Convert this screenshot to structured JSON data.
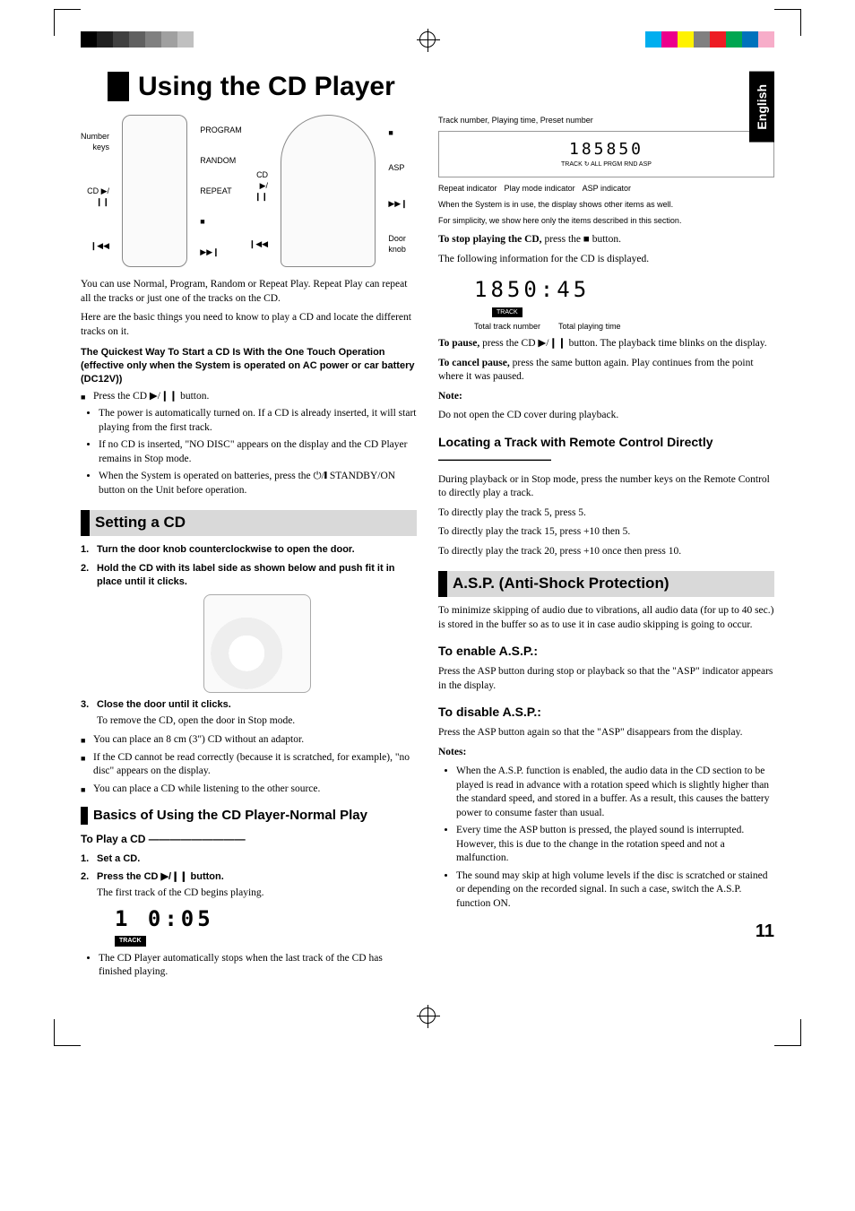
{
  "colorbar_left": [
    "#000000",
    "#202020",
    "#404040",
    "#606060",
    "#808080",
    "#a0a0a0",
    "#c0c0c0",
    "#ffffff"
  ],
  "colorbar_right": [
    "#00aeef",
    "#ec008c",
    "#fff200",
    "#808080",
    "#ed1c24",
    "#00a651",
    "#0072bc",
    "#f7adc9"
  ],
  "lang": "English",
  "title": "Using the CD Player",
  "callouts": {
    "number_keys": "Number keys",
    "cd_play": "CD ▶/❙❙",
    "prev": "❙◀◀",
    "program": "PROGRAM",
    "random": "RANDOM",
    "repeat": "REPEAT",
    "stop": "■",
    "next": "▶▶❙",
    "unit_cd": "CD ▶/❙❙",
    "unit_prev": "❙◀◀",
    "unit_stop": "■",
    "unit_asp": "ASP",
    "unit_next": "▶▶❙",
    "door_knob": "Door knob"
  },
  "display_caption": "Track number, Playing time, Preset number",
  "display_img": {
    "value": "185850",
    "sub": "TRACK   ↻ ALL PRGM RND   ASP",
    "repeat": "Repeat indicator",
    "playmode": "Play mode indicator",
    "asp": "ASP indicator"
  },
  "display_note1": "When the System is in use, the display shows other items as well.",
  "display_note2": "For simplicity, we show here only the items described in this section.",
  "intro1": "You can use Normal, Program, Random or Repeat Play. Repeat Play can repeat all the tracks or just one of the tracks on the CD.",
  "intro2": "Here are the basic things you need to know to play a CD and locate the different tracks on it.",
  "quickest": "The Quickest Way To Start a CD Is With the One Touch Operation (effective only when the System is operated on AC power or car battery (DC12V))",
  "press_cd": "Press the CD ▶/❙❙ button.",
  "quick_b1": "The power is automatically turned on. If a CD is already inserted, it will start playing from the first track.",
  "quick_b2": "If no CD is inserted, \"NO DISC\" appears on the display and the CD Player remains in Stop mode.",
  "quick_b3": "When the System is operated on batteries, press the ⏻/❙ STANDBY/ON button on the Unit before operation.",
  "setting_head": "Setting a CD",
  "step1": "Turn the door knob counterclockwise to open the door.",
  "step2": "Hold the CD with its label side as shown below and push fit it in place until it clicks.",
  "step3": "Close the door until it clicks.",
  "step3_body": "To remove the CD, open the door in Stop mode.",
  "after1": "You can place an 8 cm (3\") CD without an adaptor.",
  "after2": "If the CD cannot be read correctly (because it is scratched, for example), \"no disc\" appears on the display.",
  "after3": "You can place a CD while listening to the other source.",
  "basics_head": "Basics of Using the CD Player-Normal Play",
  "toplay_head": "To Play a CD  —————————",
  "bstep1": "Set a CD.",
  "bstep2": "Press the CD ▶/❙❙ button.",
  "bstep2_body": "The first track of the CD begins playing.",
  "seg1": "1  0:05",
  "seg1_label": "TRACK",
  "auto_stop": "The CD Player automatically stops when the last track of the CD has finished playing.",
  "to_stop_lead": "To stop playing the CD,",
  "to_stop_rest": " press the ■ button.",
  "info_disp": "The following information for the CD is displayed.",
  "seg2": "1850:45",
  "seg2_label": "TRACK",
  "seg2_c1": "Total track number",
  "seg2_c2": "Total playing time",
  "to_pause_lead": "To pause,",
  "to_pause_rest": " press the CD ▶/❙❙ button. The playback time blinks on the display.",
  "to_cancel_lead": "To cancel pause,",
  "to_cancel_rest": " press the same button again. Play continues from the point where it was paused.",
  "note_head": "Note:",
  "note_body": "Do not open the CD cover during playback.",
  "locate_head": "Locating a Track with Remote Control Directly  —————————",
  "loc1": "During playback or in Stop mode, press the number keys on the Remote Control to directly play a track.",
  "loc2": "To directly play the track 5, press 5.",
  "loc3": "To directly play the track 15, press +10 then 5.",
  "loc4": "To directly play the track 20, press +10 once then press 10.",
  "asp_head": "A.S.P. (Anti-Shock Protection)",
  "asp_intro": "To minimize skipping of audio due to vibrations, all audio data (for up to 40 sec.) is stored in the buffer so as to use it in case audio skipping is going to occur.",
  "enable_head": "To enable A.S.P.:",
  "enable_body": "Press the ASP button during stop or playback so that the \"ASP\" indicator appears in the display.",
  "disable_head": "To disable A.S.P.:",
  "disable_body": "Press the ASP button again so that the \"ASP\" disappears from the display.",
  "notes_head": "Notes:",
  "n1": "When the A.S.P. function is enabled, the audio data in the CD section to be played is read in advance with a rotation speed which is slightly higher than the standard speed, and stored in a buffer. As a result, this causes the battery power to consume faster than usual.",
  "n2": "Every time the ASP button is pressed, the played sound is interrupted. However, this is due to the change in the rotation speed and not a malfunction.",
  "n3": "The sound may skip at high volume levels if the disc is scratched or stained or depending on the recorded signal. In such a case, switch the A.S.P. function ON.",
  "page_number": "11"
}
